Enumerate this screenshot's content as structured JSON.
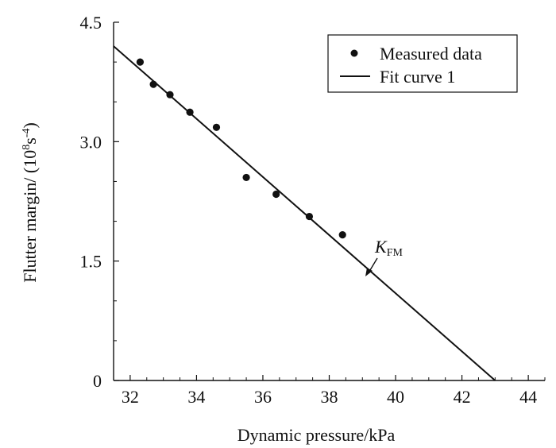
{
  "chart_data": {
    "type": "scatter",
    "xlabel": "Dynamic pressure/kPa",
    "ylabel_main": "Flutter margin/ (10",
    "ylabel_sup1": "8",
    "ylabel_mid": "s",
    "ylabel_sup2": "-4",
    "ylabel_end": ")",
    "xlim": [
      31.5,
      44.5
    ],
    "ylim": [
      0,
      4.5
    ],
    "x_ticks": [
      32,
      34,
      36,
      38,
      40,
      42,
      44
    ],
    "y_ticks": [
      0,
      1.5,
      3.0,
      4.5
    ],
    "x_tick_labels": [
      "32",
      "34",
      "36",
      "38",
      "40",
      "42",
      "44"
    ],
    "y_tick_labels": [
      "0",
      "1.5",
      "3.0",
      "4.5"
    ],
    "legend_position": "top-right",
    "series": [
      {
        "name": "Measured data",
        "kind": "scatter",
        "x": [
          32.3,
          32.7,
          33.2,
          33.8,
          34.6,
          35.5,
          36.4,
          37.4,
          38.4
        ],
        "y": [
          4.0,
          3.72,
          3.59,
          3.37,
          3.18,
          2.55,
          2.34,
          2.06,
          1.83
        ]
      },
      {
        "name": "Fit curve 1",
        "kind": "line",
        "x": [
          31.5,
          43.0
        ],
        "y": [
          4.2,
          0.0
        ]
      }
    ],
    "annotation": {
      "base": "K",
      "sub": "FM",
      "target_x": 39.45,
      "target_y": 1.33
    }
  }
}
